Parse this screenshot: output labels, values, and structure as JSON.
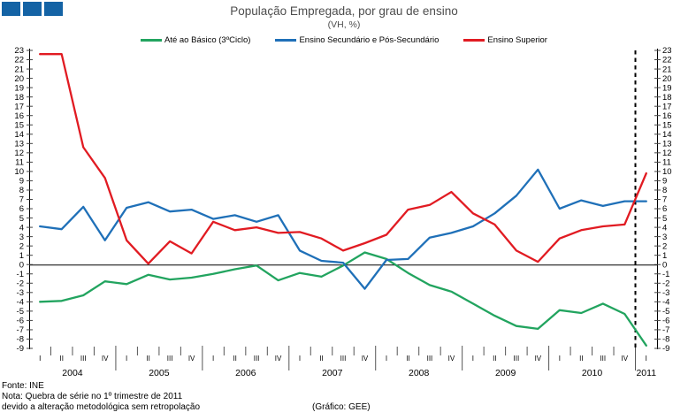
{
  "logo": {
    "color": "#1463A5",
    "square_count": 3
  },
  "footer": {
    "source": "Fonte: INE",
    "note_line1": "Nota: Quebra de série no 1º trimestre de 2011",
    "note_line2": "devido a alteração metodológica sem retropolação",
    "credit": "(Gráfico: GEE)"
  },
  "chart_data": {
    "type": "line",
    "title": "População Empregada, por grau de ensino",
    "subtitle": "(VH, %)",
    "ylabel": "",
    "xlabel": "",
    "ylim": [
      -9,
      23
    ],
    "ytick_step": 1,
    "grid": "off",
    "legend_position": "top",
    "zero_line": true,
    "series_break_at_quarter_index": 28,
    "break_line_style": "vertical black dashed at start of 2011-Q1",
    "axis_years": [
      {
        "year": "2004",
        "quarters": [
          "I",
          "II",
          "III",
          "IV"
        ]
      },
      {
        "year": "2005",
        "quarters": [
          "I",
          "II",
          "III",
          "IV"
        ]
      },
      {
        "year": "2006",
        "quarters": [
          "I",
          "II",
          "III",
          "IV"
        ]
      },
      {
        "year": "2007",
        "quarters": [
          "I",
          "II",
          "III",
          "IV"
        ]
      },
      {
        "year": "2008",
        "quarters": [
          "I",
          "II",
          "III",
          "IV"
        ]
      },
      {
        "year": "2009",
        "quarters": [
          "I",
          "II",
          "III",
          "IV"
        ]
      },
      {
        "year": "2010",
        "quarters": [
          "I",
          "II",
          "III",
          "IV"
        ]
      },
      {
        "year": "2011",
        "quarters": [
          "I"
        ]
      }
    ],
    "series": [
      {
        "name": "Até ao Básico (3ºCiclo)",
        "color": "#22A45F",
        "values": [
          -4.0,
          -3.9,
          -3.3,
          -1.8,
          -2.1,
          -1.1,
          -1.6,
          -1.4,
          -1.0,
          -0.5,
          -0.1,
          -1.7,
          -0.9,
          -1.3,
          -0.1,
          1.3,
          0.6,
          -0.9,
          -2.2,
          -2.9,
          -4.2,
          -5.5,
          -6.6,
          -6.9,
          -4.9,
          -5.2,
          -4.2,
          -5.3,
          -8.7
        ]
      },
      {
        "name": "Ensino Secundário e Pós-Secundário",
        "color": "#1F70B8",
        "values": [
          4.1,
          3.8,
          6.2,
          2.6,
          6.1,
          6.7,
          5.7,
          5.9,
          4.9,
          5.3,
          4.6,
          5.3,
          1.5,
          0.4,
          0.2,
          -2.6,
          0.5,
          0.6,
          2.9,
          3.4,
          4.1,
          5.5,
          7.4,
          10.2,
          6.0,
          6.9,
          6.3,
          6.8,
          6.8
        ]
      },
      {
        "name": "Ensino Superior",
        "color": "#E11B22",
        "values": [
          22.6,
          22.6,
          12.6,
          9.3,
          2.6,
          0.1,
          2.5,
          1.2,
          4.6,
          3.7,
          4.0,
          3.4,
          3.5,
          2.8,
          1.5,
          2.3,
          3.2,
          5.9,
          6.4,
          7.8,
          5.5,
          4.3,
          1.5,
          0.3,
          2.8,
          3.7,
          4.1,
          4.3,
          9.8
        ]
      }
    ]
  }
}
